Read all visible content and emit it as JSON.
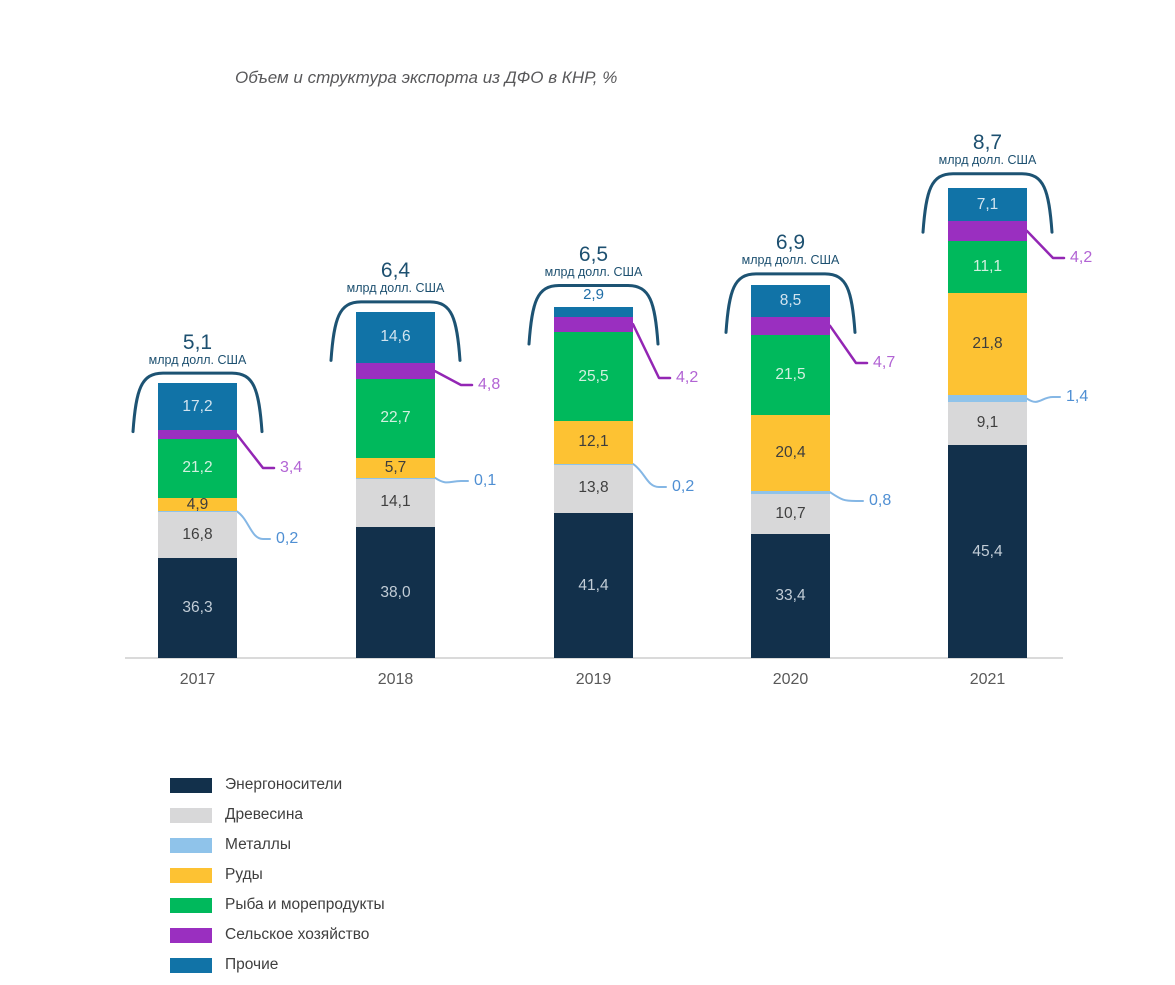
{
  "title": "Объем и структура экспорта из ДФО в КНР, %",
  "chart_data": {
    "type": "bar",
    "subtype": "stacked-percent-columns",
    "title": "Объем и структура экспорта из ДФО в КНР, %",
    "categories": [
      "2017",
      "2018",
      "2019",
      "2020",
      "2021"
    ],
    "totals": {
      "unit": "млрд долл. США",
      "values": [
        5.1,
        6.4,
        6.5,
        6.9,
        8.7
      ]
    },
    "series": [
      {
        "name": "Энергоносители",
        "color": "#12304b",
        "label_color": "#c2cdd7",
        "values": [
          36.3,
          38.0,
          41.4,
          33.4,
          45.4
        ]
      },
      {
        "name": "Древесина",
        "color": "#d8d8d9",
        "label_color": "#3f3f3f",
        "values": [
          16.8,
          14.1,
          13.8,
          10.7,
          9.1
        ]
      },
      {
        "name": "Металлы",
        "color": "#8fc3ea",
        "label_color": "#4f8fd3",
        "values": [
          0.2,
          0.1,
          0.2,
          0.8,
          1.4
        ]
      },
      {
        "name": "Руды",
        "color": "#fdc233",
        "label_color": "#3d3d3d",
        "values": [
          4.9,
          5.7,
          12.1,
          20.4,
          21.8
        ]
      },
      {
        "name": "Рыба и морепродукты",
        "color": "#00b95c",
        "label_color": "#d3f0e0",
        "values": [
          21.2,
          22.7,
          25.5,
          21.5,
          11.1
        ]
      },
      {
        "name": "Сельское хозяйство",
        "color": "#9a2fc0",
        "label_color": "#b264d4",
        "values": [
          3.4,
          4.8,
          4.2,
          4.7,
          4.2
        ]
      },
      {
        "name": "Прочие",
        "color": "#1173a7",
        "label_color": "#d2e4ef",
        "values": [
          17.2,
          14.6,
          2.9,
          8.5,
          7.1
        ]
      }
    ],
    "legend_position": "bottom-left",
    "grid": false,
    "ylim_note": "column height proportional to total, billions USD",
    "accent_colors": {
      "bracket": "#1d5373",
      "axis": "#dadada",
      "year_labels": "#595959",
      "callout_purple_line": "#9326b4",
      "callout_blue_line": "#85b7e5",
      "above_label_blue": "#1e6da6"
    }
  }
}
